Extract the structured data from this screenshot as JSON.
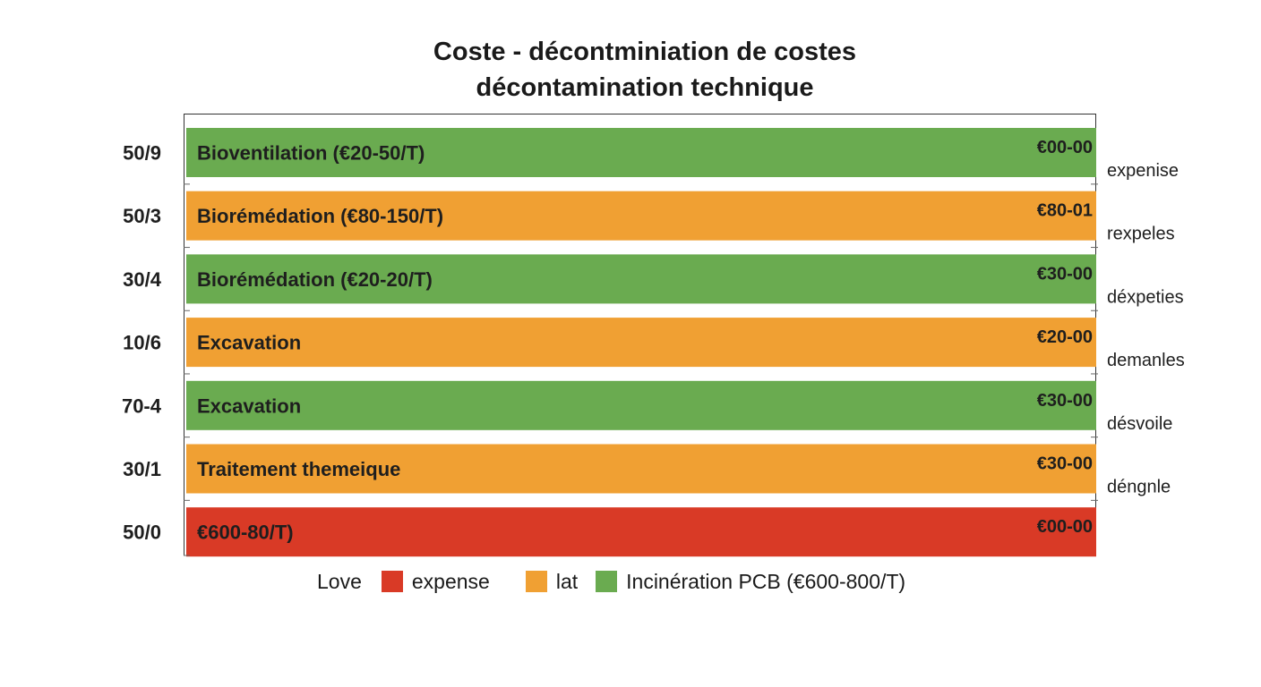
{
  "chart_data": {
    "type": "bar",
    "orientation": "horizontal",
    "title_lines": [
      "Coste - décontminiation de costes",
      "décontamination technique"
    ],
    "rows": [
      {
        "left": "50/9",
        "label": "Bioventilation (€20-50/T)",
        "value_text": "€00-00",
        "right": "expenise",
        "color": "#6aab50"
      },
      {
        "left": "50/3",
        "label": "Biorémédation (€80-150/T)",
        "value_text": "€80-01",
        "right": "rexpeles",
        "color": "#f0a033"
      },
      {
        "left": "30/4",
        "label": "Biorémédation (€20-20/T)",
        "value_text": "€30-00",
        "right": "déxpeties",
        "color": "#6aab50"
      },
      {
        "left": "10/6",
        "label": "Excavation",
        "value_text": "€20-00",
        "right": "demanles",
        "color": "#f0a033"
      },
      {
        "left": "70-4",
        "label": "Excavation",
        "value_text": "€30-00",
        "right": "désvoile",
        "color": "#6aab50"
      },
      {
        "left": "30/1",
        "label": "Traitement themeique",
        "value_text": "€30-00",
        "right": "déngnle",
        "color": "#f0a033"
      },
      {
        "left": "50/0",
        "label": "€600-80/T)",
        "value_text": "€00-00",
        "right": "",
        "color": "#d93a26"
      }
    ],
    "legend": {
      "intro": "Love",
      "entries": [
        {
          "label": "expense",
          "color": "#d93a26"
        },
        {
          "label": "lat",
          "color": "#f0a033"
        },
        {
          "label": "Incinération PCB (€600-800/T)",
          "color": "#6aab50"
        }
      ]
    },
    "grid": false,
    "legend_position": "bottom"
  }
}
